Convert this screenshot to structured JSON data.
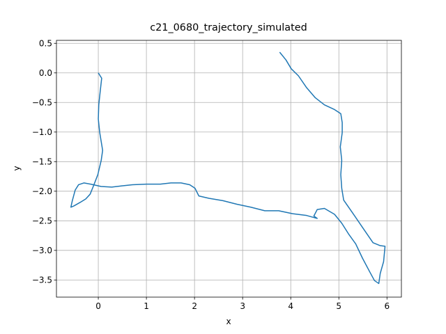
{
  "chart_data": {
    "type": "line",
    "title": "c21_0680_trajectory_simulated",
    "x_label": "x",
    "y_label": "y",
    "xlim": [
      -0.87,
      6.3
    ],
    "ylim": [
      -3.79,
      0.55
    ],
    "xticks": [
      0,
      1,
      2,
      3,
      4,
      5,
      6
    ],
    "yticks": [
      0.5,
      {
        "value": 0,
        "label": "0.0"
      },
      {
        "value": -0.5,
        "label": "−0.5"
      },
      {
        "value": -1,
        "label": "−1.0"
      },
      {
        "value": -1.5,
        "label": "−1.5"
      },
      {
        "value": -2,
        "label": "−2.0"
      },
      {
        "value": -2.5,
        "label": "−2.5"
      },
      {
        "value": -3,
        "label": "−3.0"
      },
      {
        "value": -3.5,
        "label": "−3.5"
      }
    ],
    "grid": true,
    "series": [
      {
        "color": "#1f77b4",
        "x": [
          0,
          0.07,
          0.04,
          0.01,
          0.0,
          0.03,
          0.09,
          0.06,
          -0.01,
          -0.1,
          -0.17,
          -0.26,
          -0.38,
          -0.51,
          -0.57,
          -0.54,
          -0.48,
          -0.41,
          -0.3,
          -0.16,
          0.06,
          0.28,
          0.49,
          0.71,
          1.0,
          1.29,
          1.51,
          1.72,
          1.9,
          2.01,
          2.09,
          2.3,
          2.59,
          2.88,
          3.17,
          3.46,
          3.75,
          4.04,
          4.33,
          4.55,
          4.48,
          4.55,
          4.7,
          4.91,
          5.06,
          5.2,
          5.35,
          5.49,
          5.64,
          5.74,
          5.83,
          5.86,
          5.93,
          5.96,
          5.86,
          5.71,
          5.49,
          5.28,
          5.1,
          5.06,
          5.04,
          5.06,
          5.03,
          5.07,
          5.07,
          5.04,
          4.91,
          4.7,
          4.51,
          4.33,
          4.16,
          4.01,
          3.9,
          3.77
        ],
        "values": [
          0,
          -0.09,
          -0.31,
          -0.54,
          -0.78,
          -1.01,
          -1.31,
          -1.48,
          -1.72,
          -1.91,
          -2.05,
          -2.13,
          -2.19,
          -2.25,
          -2.27,
          -2.16,
          -1.98,
          -1.89,
          -1.86,
          -1.88,
          -1.92,
          -1.93,
          -1.91,
          -1.89,
          -1.88,
          -1.88,
          -1.86,
          -1.86,
          -1.89,
          -1.95,
          -2.08,
          -2.12,
          -2.16,
          -2.22,
          -2.27,
          -2.33,
          -2.33,
          -2.38,
          -2.41,
          -2.46,
          -2.42,
          -2.31,
          -2.29,
          -2.39,
          -2.54,
          -2.72,
          -2.89,
          -3.13,
          -3.36,
          -3.51,
          -3.56,
          -3.39,
          -3.19,
          -2.93,
          -2.92,
          -2.87,
          -2.61,
          -2.36,
          -2.15,
          -1.95,
          -1.72,
          -1.48,
          -1.25,
          -1.01,
          -0.84,
          -0.69,
          -0.62,
          -0.54,
          -0.42,
          -0.25,
          -0.05,
          0.07,
          0.22,
          0.35
        ]
      }
    ]
  }
}
